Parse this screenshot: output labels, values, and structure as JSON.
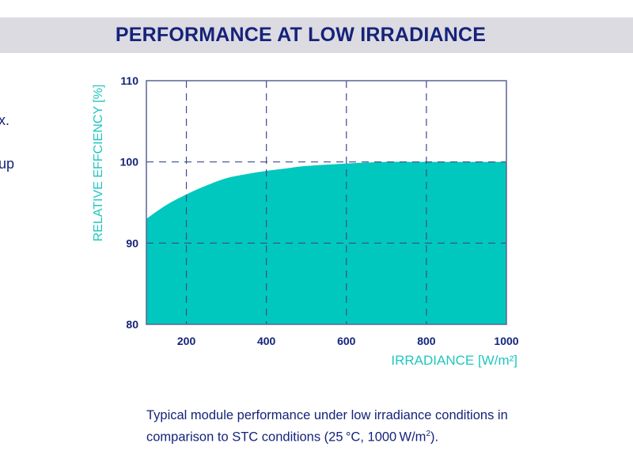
{
  "header": {
    "title": "PERFORMANCE AT LOW IRRADIANCE"
  },
  "side_fragments": [
    "x.",
    "up"
  ],
  "caption": {
    "line1": "Typical module performance under low irradiance conditions in",
    "line2_pre": "comparison to STC conditions (25 °C, 1000 W/m",
    "line2_sup": "2",
    "line2_post": ")."
  },
  "colors": {
    "fill": "#00c8be",
    "axis_text": "#15237a",
    "label_text": "#1fc7bf",
    "grid": "#3d4a8a",
    "band": "#dddbe2"
  },
  "chart_data": {
    "type": "area",
    "title": "PERFORMANCE AT LOW IRRADIANCE",
    "xlabel": "IRRADIANCE [W/m²]",
    "ylabel": "RELATIVE EFFCIENCY [%]",
    "xlim": [
      100,
      1000
    ],
    "ylim": [
      80,
      110
    ],
    "xticks": [
      200,
      400,
      600,
      800,
      1000
    ],
    "yticks": [
      80,
      90,
      100,
      110
    ],
    "grid": true,
    "x": [
      100,
      150,
      200,
      250,
      300,
      350,
      400,
      450,
      500,
      600,
      700,
      800,
      900,
      1000
    ],
    "values": [
      93.0,
      94.7,
      96.0,
      97.1,
      98.0,
      98.5,
      98.9,
      99.2,
      99.5,
      99.8,
      100.0,
      100.0,
      100.0,
      100.0
    ]
  }
}
